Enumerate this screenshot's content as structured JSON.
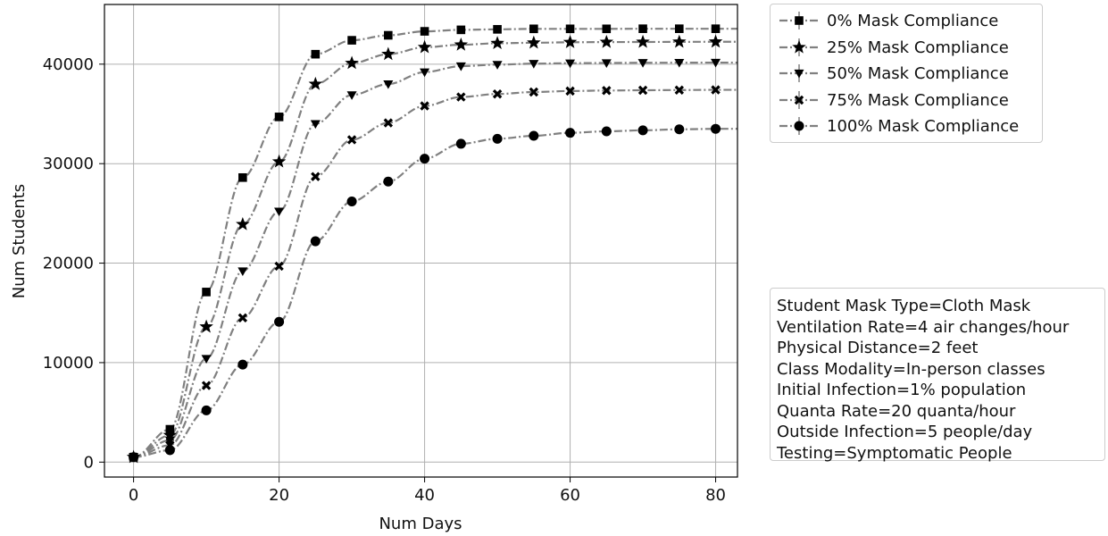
{
  "chart_data": {
    "type": "line",
    "title": "",
    "xlabel": "Num Days",
    "ylabel": "Num Students",
    "xlim": [
      -4,
      83
    ],
    "ylim": [
      -1500,
      46000
    ],
    "xticks": [
      0,
      20,
      40,
      60,
      80
    ],
    "yticks": [
      0,
      10000,
      20000,
      30000,
      40000
    ],
    "grid": true,
    "legend_position": "outside-top-right",
    "line_color": "#808080",
    "marker_color": "#000000",
    "x": [
      0,
      5,
      10,
      15,
      20,
      25,
      30,
      35,
      40,
      45,
      50,
      55,
      60,
      65,
      70,
      75,
      80
    ],
    "series": [
      {
        "name": "0% Mask Compliance",
        "marker": "square",
        "values": [
          500,
          3300,
          17100,
          28600,
          34700,
          41000,
          42400,
          42900,
          43300,
          43450,
          43500,
          43550,
          43550,
          43550,
          43560,
          43560,
          43560
        ]
      },
      {
        "name": "25% Mask Compliance",
        "marker": "star",
        "values": [
          500,
          2700,
          13600,
          23900,
          30200,
          38000,
          40100,
          41000,
          41700,
          41950,
          42100,
          42150,
          42200,
          42220,
          42230,
          42240,
          42250
        ]
      },
      {
        "name": "50% Mask Compliance",
        "marker": "triangle-down",
        "values": [
          500,
          2200,
          10400,
          19200,
          25200,
          34000,
          36900,
          38000,
          39200,
          39800,
          39950,
          40050,
          40100,
          40120,
          40140,
          40150,
          40160
        ]
      },
      {
        "name": "75% Mask Compliance",
        "marker": "x",
        "values": [
          500,
          1700,
          7700,
          14500,
          19700,
          28700,
          32400,
          34100,
          35800,
          36700,
          37000,
          37200,
          37300,
          37350,
          37380,
          37400,
          37420
        ]
      },
      {
        "name": "100% Mask Compliance",
        "marker": "circle",
        "values": [
          500,
          1200,
          5200,
          9800,
          14100,
          22200,
          26200,
          28200,
          30500,
          32000,
          32500,
          32800,
          33100,
          33250,
          33350,
          33450,
          33500
        ]
      }
    ],
    "annotation": [
      "Student Mask Type=Cloth Mask",
      "Ventilation Rate=4 air changes/hour",
      "Physical Distance=2 feet",
      "Class Modality=In-person classes",
      "Initial Infection=1% population",
      "Quanta Rate=20 quanta/hour",
      "Outside Infection=5 people/day",
      "Testing=Symptomatic People"
    ]
  }
}
